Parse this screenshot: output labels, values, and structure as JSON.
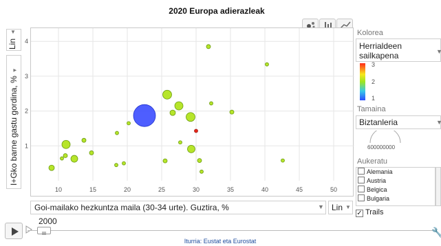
{
  "chart_data": {
    "type": "scatter",
    "title": "2020 Europa adierazleak",
    "xlabel": "Goi-mailako hezkuntza maila (30-34 urte). Guztira, %",
    "ylabel": "I+Gko barne gastu gordina, %",
    "xlim": [
      6,
      53
    ],
    "ylim": [
      0,
      4.3
    ],
    "x_ticks": [
      "10",
      "15",
      "20",
      "25",
      "30",
      "35",
      "40",
      "45",
      "50"
    ],
    "y_ticks": [
      "1",
      "2",
      "3",
      "4"
    ],
    "x_scale": "Lin",
    "y_scale": "Lin",
    "color_label": "Kolorea",
    "color_by": "Herrialdeen sailkapena",
    "color_scale": {
      "min": 1,
      "max": 3,
      "ticks": [
        "3",
        "2",
        "1"
      ],
      "colors": [
        "#ff2a1a",
        "#f7e71c",
        "#9de51f",
        "#38c9e8",
        "#2b4bff"
      ]
    },
    "size_label": "Tamaina",
    "size_by": "Biztanleria",
    "size_legend_value": "600000000",
    "points": [
      {
        "x": 22.5,
        "y": 1.87,
        "c": 1.0
      },
      {
        "x": 25.8,
        "y": 2.47,
        "c": 2.0
      },
      {
        "x": 27.5,
        "y": 2.15,
        "c": 2.0
      },
      {
        "x": 26.6,
        "y": 1.95,
        "c": 2.0
      },
      {
        "x": 29.2,
        "y": 1.83,
        "c": 2.0
      },
      {
        "x": 11.1,
        "y": 1.04,
        "c": 2.0
      },
      {
        "x": 12.3,
        "y": 0.63,
        "c": 2.0
      },
      {
        "x": 9.0,
        "y": 0.37,
        "c": 2.0
      },
      {
        "x": 29.3,
        "y": 0.91,
        "c": 2.0
      },
      {
        "x": 30.0,
        "y": 1.43,
        "c": 3.0
      },
      {
        "x": 31.8,
        "y": 3.85,
        "c": 2.0
      },
      {
        "x": 40.3,
        "y": 3.34,
        "c": 2.0
      },
      {
        "x": 32.2,
        "y": 2.22,
        "c": 2.0
      },
      {
        "x": 35.2,
        "y": 1.97,
        "c": 2.0
      },
      {
        "x": 13.7,
        "y": 1.16,
        "c": 2.0
      },
      {
        "x": 14.8,
        "y": 0.8,
        "c": 2.0
      },
      {
        "x": 10.5,
        "y": 0.64,
        "c": 2.0
      },
      {
        "x": 11.0,
        "y": 0.72,
        "c": 2.0
      },
      {
        "x": 18.5,
        "y": 1.37,
        "c": 2.0
      },
      {
        "x": 19.5,
        "y": 0.5,
        "c": 2.0
      },
      {
        "x": 18.4,
        "y": 0.45,
        "c": 2.0
      },
      {
        "x": 25.5,
        "y": 0.57,
        "c": 2.0
      },
      {
        "x": 27.7,
        "y": 1.1,
        "c": 2.0
      },
      {
        "x": 30.5,
        "y": 0.58,
        "c": 2.0
      },
      {
        "x": 30.8,
        "y": 0.26,
        "c": 2.0
      },
      {
        "x": 42.6,
        "y": 0.58,
        "c": 2.0
      },
      {
        "x": 20.2,
        "y": 1.65,
        "c": 2.0
      }
    ]
  },
  "controls": {
    "aukeratu_label": "Aukeratu",
    "countries": [
      "Alemania",
      "Austria",
      "Belgica",
      "Bulgaria"
    ],
    "trails_label": "Trails",
    "year": "2000",
    "source": "Iturria: Eustat eta Eurostat"
  },
  "icons": {
    "play": "play-icon",
    "wrench": "wrench-icon",
    "bubble_view": "bubble-chart-icon",
    "bar_view": "bar-chart-icon",
    "line_view": "line-chart-icon"
  }
}
